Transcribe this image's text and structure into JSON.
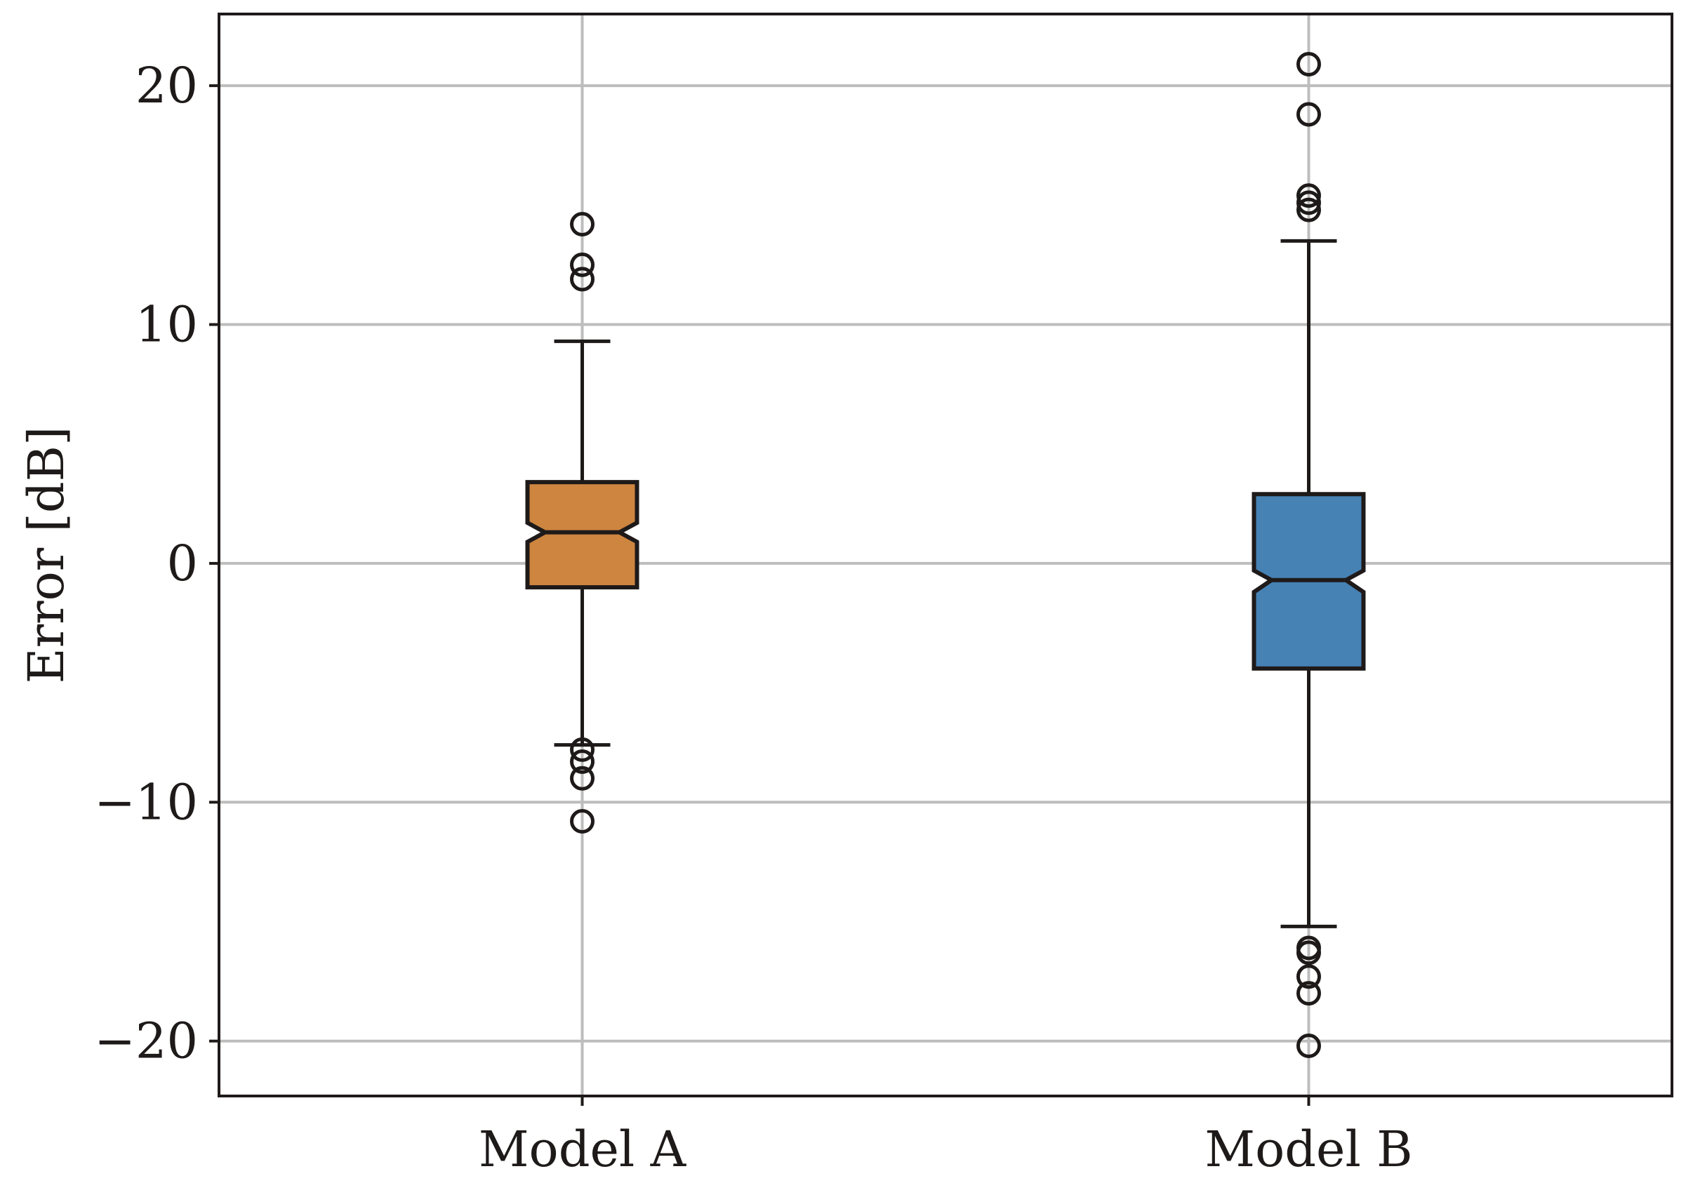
{
  "chart_data": {
    "type": "box",
    "title": "",
    "xlabel": "",
    "ylabel": "Error [dB]",
    "ylim": [
      -22.3,
      23.0
    ],
    "yticks": [
      20,
      10,
      0,
      -10,
      -20
    ],
    "ytick_labels": [
      "20",
      "10",
      "0",
      "−10",
      "−20"
    ],
    "grid": true,
    "notched": true,
    "categories": [
      "Model A",
      "Model B"
    ],
    "series": [
      {
        "name": "Model A",
        "color": "#cd853f",
        "whisker_low": -7.6,
        "q1": -1.0,
        "median": 1.3,
        "q3": 3.4,
        "whisker_high": 9.3,
        "notch_low": 0.9,
        "notch_high": 1.7,
        "outliers": [
          14.2,
          12.5,
          11.9,
          -7.8,
          -8.3,
          -9.0,
          -10.8
        ]
      },
      {
        "name": "Model B",
        "color": "#4682b4",
        "whisker_low": -15.2,
        "q1": -4.4,
        "median": -0.7,
        "q3": 2.9,
        "whisker_high": 13.5,
        "notch_low": -1.2,
        "notch_high": -0.3,
        "outliers": [
          20.9,
          18.8,
          15.4,
          15.1,
          14.8,
          -16.1,
          -16.3,
          -17.3,
          -18.0,
          -20.2
        ]
      }
    ]
  },
  "colors": {
    "axes": "#1f1a1a",
    "grid": "#bdbdbd",
    "background": "#ffffff"
  }
}
